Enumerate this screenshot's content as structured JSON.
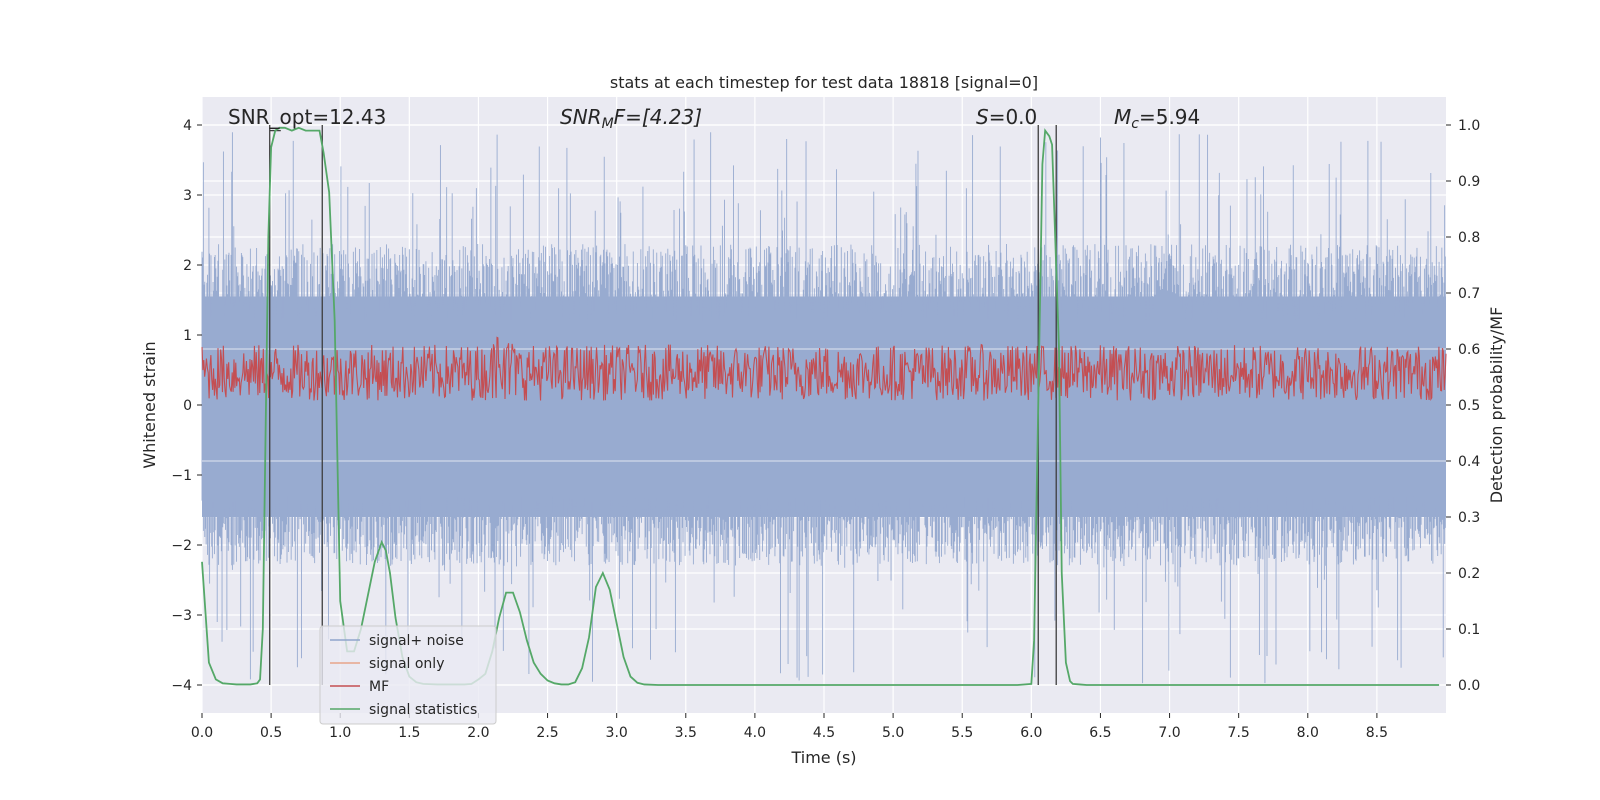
{
  "chart_data": {
    "type": "line",
    "title": "stats at each timestep for test data 18818 [signal=0]",
    "xlabel": "Time (s)",
    "ylabel_left": "Whitened strain",
    "ylabel_right": "Detection probability/MF",
    "xlim": [
      0.0,
      9.0
    ],
    "ylim_left": [
      -4.4,
      4.4
    ],
    "ylim_right": [
      -0.05,
      1.05
    ],
    "x_ticks": [
      "0.0",
      "0.5",
      "1.0",
      "1.5",
      "2.0",
      "2.5",
      "3.0",
      "3.5",
      "4.0",
      "4.5",
      "5.0",
      "5.5",
      "6.0",
      "6.5",
      "7.0",
      "7.5",
      "8.0",
      "8.5"
    ],
    "y_left_ticks": [
      "4",
      "3",
      "2",
      "1",
      "0",
      "−1",
      "−2",
      "−3",
      "−4"
    ],
    "y_right_ticks": [
      "1.0",
      "0.9",
      "0.8",
      "0.7",
      "0.6",
      "0.5",
      "0.4",
      "0.3",
      "0.2",
      "0.1",
      "0.0"
    ],
    "annotations": {
      "snr_opt": "SNR_opt=12.43",
      "snr_mf_main": "SNR",
      "snr_mf_sub": "M",
      "snr_mf_rest": "F=[4.23]",
      "s_main": "S",
      "s_rest": "=0.0",
      "mc_main": "M",
      "mc_sub": "c",
      "mc_rest": "=5.94"
    },
    "legend": [
      {
        "label": "signal+ noise",
        "color": "#8fa4cc"
      },
      {
        "label": "signal only",
        "color": "#e8a48a"
      },
      {
        "label": "MF",
        "color": "#c44e52"
      },
      {
        "label": "signal statistics",
        "color": "#55a868"
      }
    ],
    "series_info": {
      "noise": {
        "name": "signal+ noise",
        "typical_envelope": [
          -2.0,
          2.2
        ],
        "peak_max": 3.9,
        "peak_min": -4.0
      },
      "mf": {
        "name": "MF",
        "range_right_axis": [
          0.5,
          0.62
        ]
      }
    },
    "vertical_markers_s": [
      0.49,
      0.87,
      6.05,
      6.18
    ],
    "signal_statistics": {
      "x": [
        0.0,
        0.05,
        0.1,
        0.15,
        0.2,
        0.25,
        0.3,
        0.35,
        0.4,
        0.42,
        0.44,
        0.46,
        0.48,
        0.5,
        0.53,
        0.56,
        0.6,
        0.65,
        0.7,
        0.75,
        0.8,
        0.85,
        0.88,
        0.92,
        0.96,
        1.0,
        1.05,
        1.1,
        1.15,
        1.2,
        1.25,
        1.3,
        1.33,
        1.36,
        1.4,
        1.45,
        1.5,
        1.55,
        1.6,
        1.7,
        1.8,
        1.9,
        1.95,
        2.0,
        2.05,
        2.1,
        2.15,
        2.2,
        2.25,
        2.3,
        2.35,
        2.4,
        2.45,
        2.5,
        2.55,
        2.6,
        2.65,
        2.7,
        2.75,
        2.8,
        2.85,
        2.9,
        2.95,
        3.0,
        3.05,
        3.1,
        3.15,
        3.2,
        3.3,
        3.5,
        4.0,
        4.5,
        5.0,
        5.5,
        5.9,
        6.0,
        6.02,
        6.05,
        6.08,
        6.1,
        6.13,
        6.15,
        6.2,
        6.22,
        6.25,
        6.28,
        6.3,
        6.35,
        6.4,
        7.0,
        7.5,
        8.0,
        8.5,
        8.95
      ],
      "y": [
        0.22,
        0.04,
        0.01,
        0.003,
        0.002,
        0.001,
        0.001,
        0.001,
        0.003,
        0.01,
        0.1,
        0.45,
        0.8,
        0.96,
        0.99,
        0.995,
        0.995,
        0.99,
        0.995,
        0.99,
        0.99,
        0.99,
        0.95,
        0.88,
        0.65,
        0.15,
        0.06,
        0.06,
        0.1,
        0.16,
        0.22,
        0.255,
        0.24,
        0.2,
        0.12,
        0.05,
        0.015,
        0.005,
        0.002,
        0.001,
        0.001,
        0.001,
        0.002,
        0.01,
        0.02,
        0.06,
        0.12,
        0.165,
        0.165,
        0.13,
        0.08,
        0.04,
        0.02,
        0.008,
        0.003,
        0.001,
        0.001,
        0.005,
        0.03,
        0.085,
        0.175,
        0.2,
        0.17,
        0.11,
        0.05,
        0.015,
        0.004,
        0.001,
        0.0,
        0.0,
        0.0,
        0.0,
        0.0,
        0.0,
        0.0,
        0.002,
        0.08,
        0.5,
        0.93,
        0.99,
        0.98,
        0.965,
        0.6,
        0.2,
        0.04,
        0.007,
        0.002,
        0.001,
        0.0,
        0.0,
        0.0,
        0.0,
        0.0,
        0.0
      ]
    }
  }
}
